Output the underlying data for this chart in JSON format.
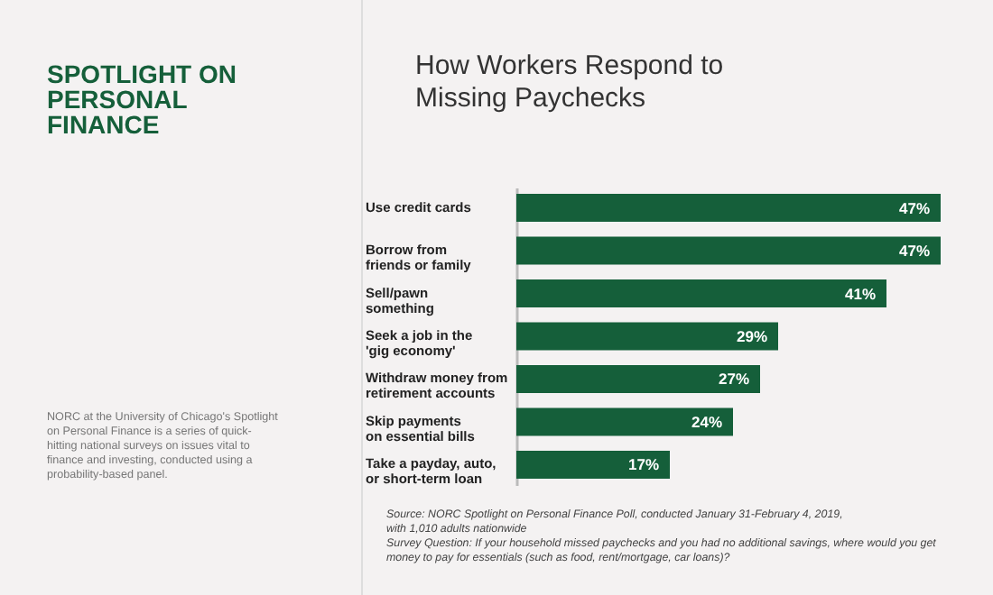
{
  "chart_data": {
    "type": "bar",
    "orientation": "horizontal",
    "title": "How Workers Respond to\nMissing Paychecks",
    "categories": [
      "Use credit cards",
      "Borrow from\nfriends or family",
      "Sell/pawn\nsomething",
      "Seek a job in the\n'gig economy'",
      "Withdraw money from\nretirement accounts",
      "Skip payments\non essential bills",
      "Take a payday, auto,\nor short-term loan"
    ],
    "values": [
      47,
      47,
      41,
      29,
      27,
      24,
      17
    ],
    "value_labels": [
      "47%",
      "47%",
      "41%",
      "29%",
      "27%",
      "24%",
      "17%"
    ],
    "color": "#155f3a",
    "annotations": [
      "SPOTLIGHT ON PERSONAL FINANCE",
      "NORC at the University of Chicago's Spotlight on Personal Finance is a series of quick-hitting national surveys on issues vital to finance and investing, conducted using a probability-based panel.",
      "Source: NORC Spotlight on Personal Finance Poll, conducted January 31-February 4, 2019,\nwith 1,010 adults nationwide\nSurvey Question: If your household missed paychecks and you had no additional savings, where would you get money to pay for essentials (such as food, rent/mortgage, car loans)?"
    ]
  }
}
